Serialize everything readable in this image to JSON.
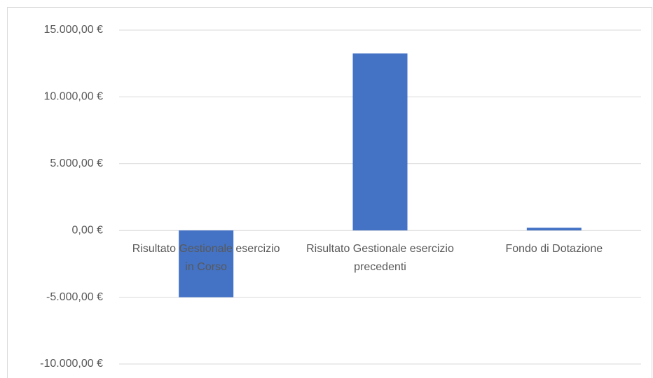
{
  "chart_data": {
    "type": "bar",
    "categories": [
      "Risultato Gestionale esercizio in Corso",
      "Risultato Gestionale esercizio precedenti",
      "Fondo di Dotazione"
    ],
    "values": [
      -5000,
      13250,
      200
    ],
    "color": "#4472c4",
    "ylim": [
      -10000,
      15000
    ],
    "yticks": [
      {
        "value": -10000,
        "label": "-10.000,00 €"
      },
      {
        "value": -5000,
        "label": "-5.000,00 €"
      },
      {
        "value": 0,
        "label": "0,00 €"
      },
      {
        "value": 5000,
        "label": "5.000,00 €"
      },
      {
        "value": 10000,
        "label": "10.000,00 €"
      },
      {
        "value": 15000,
        "label": "15.000,00 €"
      }
    ],
    "grid": true
  }
}
